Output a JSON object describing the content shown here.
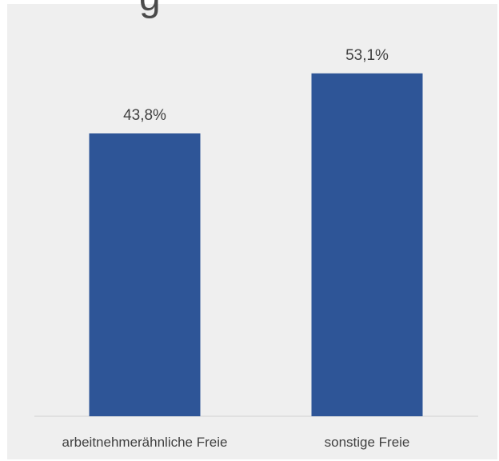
{
  "header": {
    "title_fragment": "g"
  },
  "chart_data": {
    "type": "bar",
    "categories": [
      "arbeitnehmerähnliche Freie",
      "sonstige Freie"
    ],
    "values": [
      43.8,
      53.1
    ],
    "value_labels": [
      "43,8%",
      "53,1%"
    ],
    "ylim": [
      0,
      60
    ],
    "grid": false,
    "bar_color": "#2e5597",
    "background_color": "#efefef"
  }
}
